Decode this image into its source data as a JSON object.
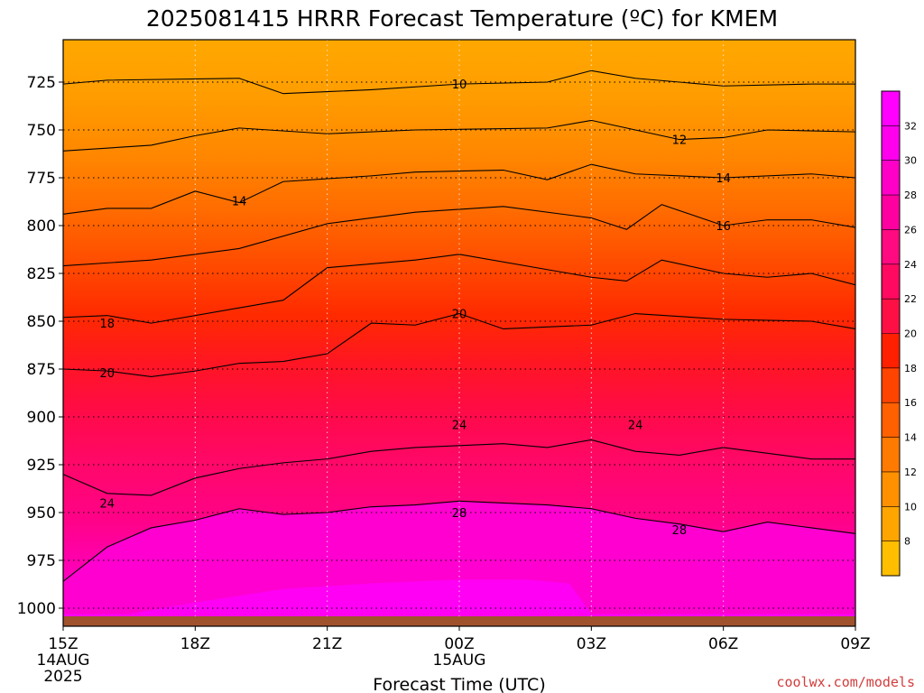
{
  "chart_data": {
    "type": "heatmap",
    "title": "2025081415 HRRR Forecast Temperature (ºC) for KMEM",
    "xlabel": "Forecast Time (UTC)",
    "ylabel": "",
    "x_ticks": [
      {
        "label": "15Z",
        "sub": [
          "14AUG",
          "2025"
        ]
      },
      {
        "label": "18Z",
        "sub": []
      },
      {
        "label": "21Z",
        "sub": []
      },
      {
        "label": "00Z",
        "sub": [
          "15AUG"
        ]
      },
      {
        "label": "03Z",
        "sub": []
      },
      {
        "label": "06Z",
        "sub": []
      },
      {
        "label": "09Z",
        "sub": []
      }
    ],
    "x_hours": [
      0,
      3,
      6,
      9,
      12,
      15,
      18
    ],
    "y_ticks": [
      725,
      750,
      775,
      800,
      825,
      850,
      875,
      900,
      925,
      950,
      975,
      1000
    ],
    "ylim": [
      700,
      1003
    ],
    "xlim": [
      0,
      18
    ],
    "grid": true,
    "colorbar": {
      "ticks": [
        8,
        10,
        12,
        14,
        16,
        18,
        20,
        22,
        24,
        26,
        28,
        30,
        32
      ],
      "colors": [
        "#ffbe00",
        "#ffa500",
        "#ff9000",
        "#ff7a00",
        "#ff6000",
        "#ff4400",
        "#ff2000",
        "#ff1044",
        "#ff0a60",
        "#ff0a80",
        "#ff00a0",
        "#ff00c8",
        "#ff00ee",
        "#ff00ff"
      ]
    },
    "contours": [
      {
        "label": "10",
        "level": 10,
        "label_pts": [
          [
            9.0,
            726
          ]
        ],
        "points": [
          [
            0,
            726
          ],
          [
            1,
            724
          ],
          [
            4,
            723
          ],
          [
            5,
            731
          ],
          [
            6,
            730
          ],
          [
            7,
            729
          ],
          [
            9,
            726
          ],
          [
            11,
            725
          ],
          [
            12,
            719
          ],
          [
            13,
            723
          ],
          [
            15,
            727
          ],
          [
            17,
            726
          ],
          [
            18,
            726
          ]
        ]
      },
      {
        "label": "12",
        "level": 12,
        "label_pts": [
          [
            14.0,
            755
          ]
        ],
        "points": [
          [
            0,
            761
          ],
          [
            2,
            758
          ],
          [
            3,
            753
          ],
          [
            4,
            749
          ],
          [
            6,
            752
          ],
          [
            8,
            750
          ],
          [
            11,
            749
          ],
          [
            12,
            745
          ],
          [
            13,
            750
          ],
          [
            14,
            755
          ],
          [
            15,
            754
          ],
          [
            16,
            750
          ],
          [
            18,
            751
          ]
        ]
      },
      {
        "label": "14",
        "level": 14,
        "label_pts": [
          [
            4.0,
            787
          ],
          [
            15.0,
            775
          ]
        ],
        "points": [
          [
            0,
            794
          ],
          [
            1,
            791
          ],
          [
            2,
            791
          ],
          [
            3,
            782
          ],
          [
            4,
            788
          ],
          [
            5,
            777
          ],
          [
            7,
            774
          ],
          [
            8,
            772
          ],
          [
            10,
            771
          ],
          [
            11,
            776
          ],
          [
            12,
            768
          ],
          [
            13,
            773
          ],
          [
            15,
            775
          ],
          [
            17,
            773
          ],
          [
            18,
            775
          ]
        ]
      },
      {
        "label": "16",
        "level": 16,
        "label_pts": [
          [
            15.0,
            800
          ]
        ],
        "points": [
          [
            0,
            821
          ],
          [
            2,
            818
          ],
          [
            4,
            812
          ],
          [
            6,
            799
          ],
          [
            8,
            793
          ],
          [
            10,
            790
          ],
          [
            12,
            796
          ],
          [
            12.8,
            802
          ],
          [
            13.6,
            789
          ],
          [
            15,
            800
          ],
          [
            16,
            797
          ],
          [
            17,
            797
          ],
          [
            18,
            801
          ]
        ]
      },
      {
        "label": "18",
        "level": 18,
        "label_pts": [
          [
            1.0,
            851
          ]
        ],
        "points": [
          [
            0,
            848
          ],
          [
            1,
            847
          ],
          [
            2,
            851
          ],
          [
            4,
            843
          ],
          [
            5,
            839
          ],
          [
            6,
            822
          ],
          [
            8,
            818
          ],
          [
            9,
            815
          ],
          [
            12,
            827
          ],
          [
            12.8,
            829
          ],
          [
            13.6,
            818
          ],
          [
            15,
            825
          ],
          [
            16,
            827
          ],
          [
            17,
            825
          ],
          [
            18,
            831
          ]
        ]
      },
      {
        "label": "20",
        "level": 20,
        "label_pts": [
          [
            1.0,
            877
          ],
          [
            9.0,
            846
          ]
        ],
        "points": [
          [
            0,
            875
          ],
          [
            1,
            876
          ],
          [
            2,
            879
          ],
          [
            3,
            876
          ],
          [
            4,
            872
          ],
          [
            5,
            871
          ],
          [
            6,
            867
          ],
          [
            7,
            851
          ],
          [
            8,
            852
          ],
          [
            9,
            846
          ],
          [
            10,
            854
          ],
          [
            11,
            853
          ],
          [
            12,
            852
          ],
          [
            13,
            846
          ],
          [
            15,
            849
          ],
          [
            17,
            850
          ],
          [
            18,
            854
          ]
        ]
      },
      {
        "label": "24",
        "level": 24,
        "label_pts": [
          [
            1.0,
            945
          ],
          [
            9.0,
            904
          ],
          [
            13.0,
            904
          ]
        ],
        "points": [
          [
            0,
            930
          ],
          [
            1,
            940
          ],
          [
            2,
            941
          ],
          [
            3,
            932
          ],
          [
            4,
            927
          ],
          [
            5,
            924
          ],
          [
            6,
            922
          ],
          [
            7,
            918
          ],
          [
            8,
            916
          ],
          [
            9,
            915
          ],
          [
            10,
            914
          ],
          [
            11,
            916
          ],
          [
            12,
            912
          ],
          [
            13,
            918
          ],
          [
            14,
            920
          ],
          [
            15,
            916
          ],
          [
            16,
            919
          ],
          [
            17,
            922
          ],
          [
            18,
            922
          ]
        ]
      },
      {
        "label": "28",
        "level": 28,
        "label_pts": [
          [
            9.0,
            950
          ],
          [
            14.0,
            959
          ]
        ],
        "points": [
          [
            0,
            986
          ],
          [
            1,
            968
          ],
          [
            2,
            958
          ],
          [
            3,
            954
          ],
          [
            4,
            948
          ],
          [
            5,
            951
          ],
          [
            6,
            950
          ],
          [
            7,
            947
          ],
          [
            8,
            946
          ],
          [
            9,
            944
          ],
          [
            10,
            945
          ],
          [
            11,
            946
          ],
          [
            12,
            948
          ],
          [
            13,
            953
          ],
          [
            14,
            956
          ],
          [
            15,
            960
          ],
          [
            16,
            955
          ],
          [
            17,
            958
          ],
          [
            18,
            961
          ]
        ]
      }
    ]
  },
  "credit": "coolwx.com/models"
}
